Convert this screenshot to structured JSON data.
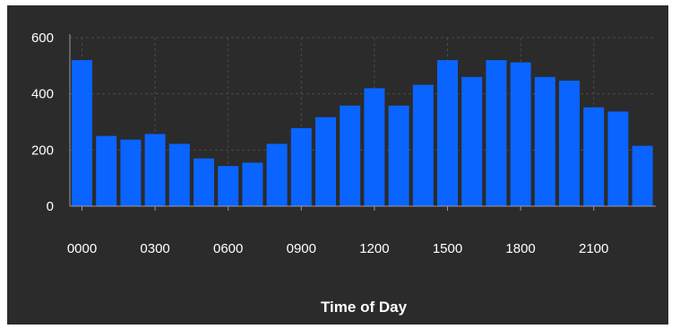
{
  "chart_data": {
    "type": "bar",
    "title": "",
    "xlabel": "Time of Day",
    "ylabel": "",
    "categories": [
      "0000",
      "0100",
      "0200",
      "0300",
      "0400",
      "0500",
      "0600",
      "0700",
      "0800",
      "0900",
      "1000",
      "1100",
      "1200",
      "1300",
      "1400",
      "1500",
      "1600",
      "1700",
      "1800",
      "1900",
      "2000",
      "2100",
      "2200",
      "2300"
    ],
    "x_tick_labels": [
      "0000",
      "0300",
      "0600",
      "0900",
      "1200",
      "1500",
      "1800",
      "2100"
    ],
    "values": [
      520,
      250,
      237,
      257,
      222,
      170,
      143,
      155,
      222,
      278,
      317,
      358,
      420,
      358,
      432,
      520,
      460,
      520,
      512,
      460,
      447,
      352,
      337,
      215
    ],
    "ylim": [
      0,
      600
    ],
    "y_ticks": [
      0,
      200,
      400,
      600
    ],
    "grid": true,
    "bar_color": "#0a64ff",
    "background_color": "#2b2b2b",
    "grid_color": "#4a4a4a"
  }
}
